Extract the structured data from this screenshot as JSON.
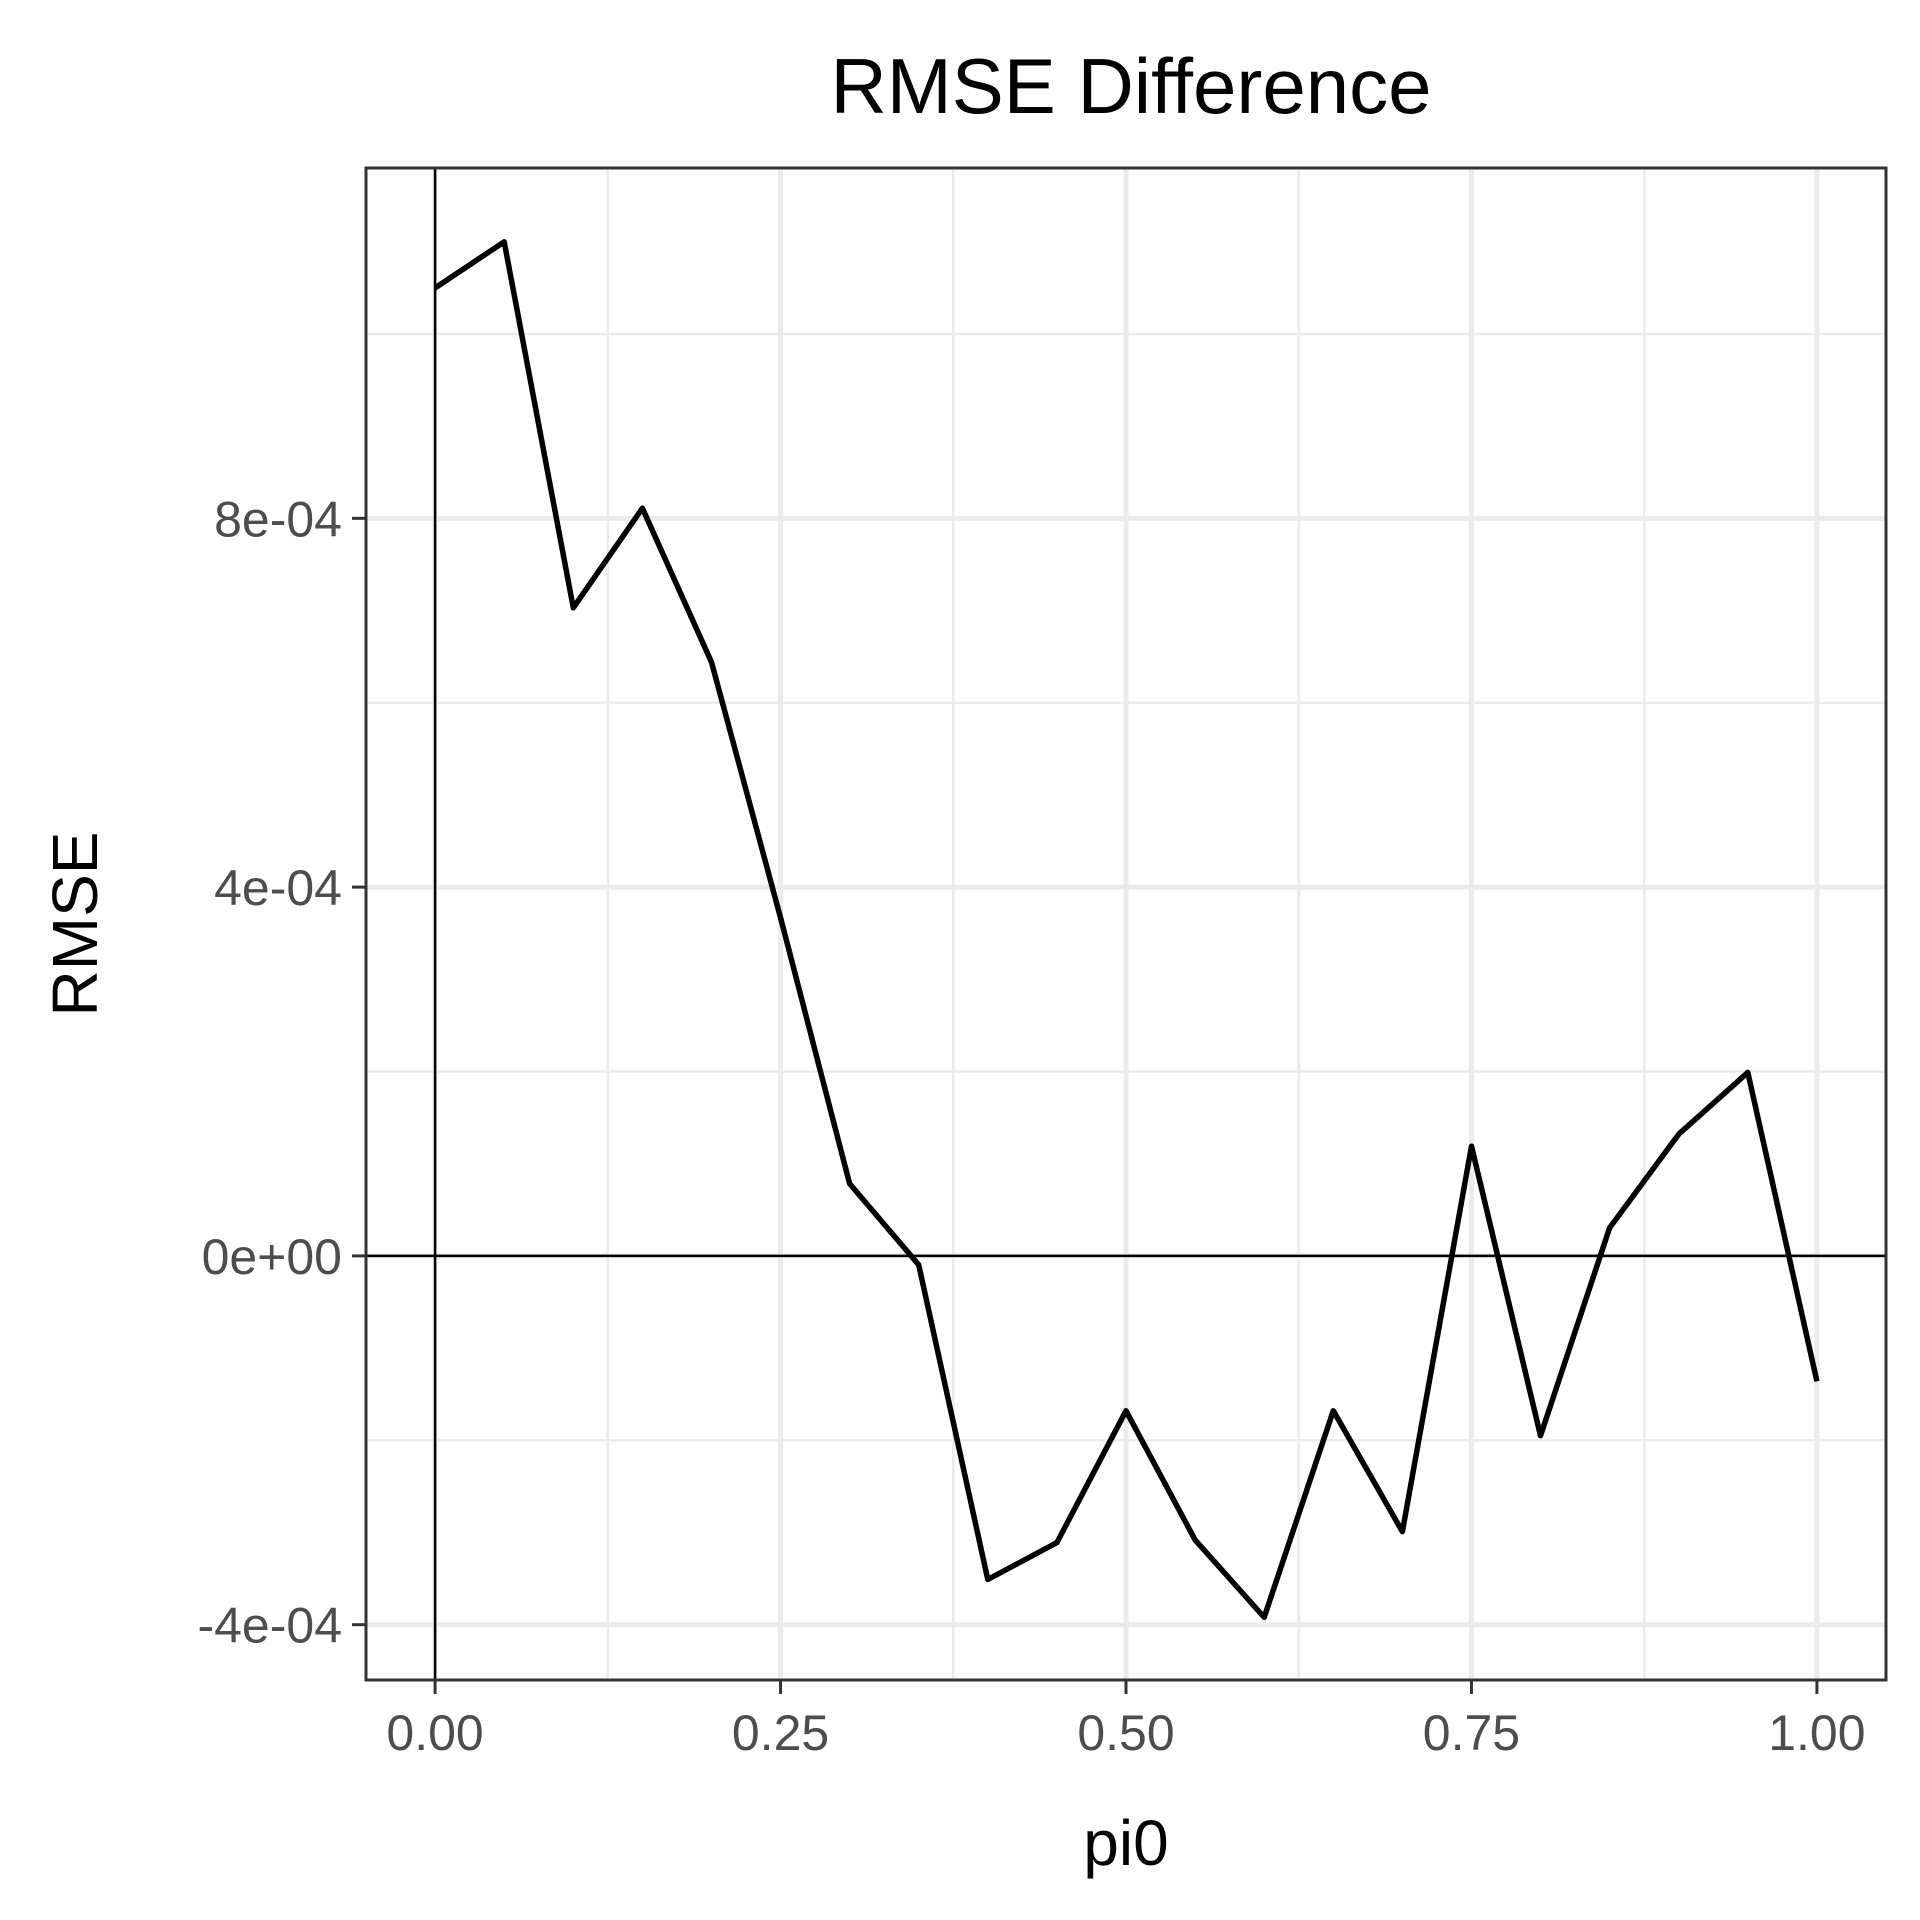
{
  "chart_data": {
    "type": "line",
    "title": "RMSE Difference",
    "xlabel": "pi0",
    "ylabel": "RMSE",
    "xlim": [
      -0.05,
      1.05
    ],
    "ylim": [
      -0.00046,
      0.00118
    ],
    "x_ticks": [
      {
        "value": 0.0,
        "label": "0.00"
      },
      {
        "value": 0.25,
        "label": "0.25"
      },
      {
        "value": 0.5,
        "label": "0.50"
      },
      {
        "value": 0.75,
        "label": "0.75"
      },
      {
        "value": 1.0,
        "label": "1.00"
      }
    ],
    "y_ticks": [
      {
        "value": -0.0004,
        "label": "-4e-04"
      },
      {
        "value": 0.0,
        "label": "0e+00"
      },
      {
        "value": 0.0004,
        "label": "4e-04"
      },
      {
        "value": 0.0008,
        "label": "8e-04"
      }
    ],
    "x_minor": [
      0.125,
      0.375,
      0.625,
      0.875
    ],
    "y_minor": [
      -0.0002,
      0.0002,
      0.0006,
      0.001
    ],
    "reference_lines": {
      "x": 0,
      "y": 0
    },
    "grid": true,
    "legend": "none",
    "line_color": "#000000",
    "series": [
      {
        "x": [
          0.0,
          0.05,
          0.1,
          0.15,
          0.2,
          0.25,
          0.3,
          0.35,
          0.4,
          0.45,
          0.5,
          0.55,
          0.6,
          0.65,
          0.7,
          0.75,
          0.8,
          0.85,
          0.9,
          0.95,
          1.0
        ],
        "values": [
          0.00105,
          0.0011,
          0.000703,
          0.000811,
          0.000644,
          0.000367,
          7.84e-05,
          -9.6e-06,
          -0.000351,
          -0.000311,
          -0.000168,
          -0.000308,
          -0.000392,
          -0.000168,
          -0.000299,
          0.000119,
          -0.000195,
          3.04e-05,
          0.000132,
          0.000199,
          -0.000136
        ]
      }
    ]
  }
}
